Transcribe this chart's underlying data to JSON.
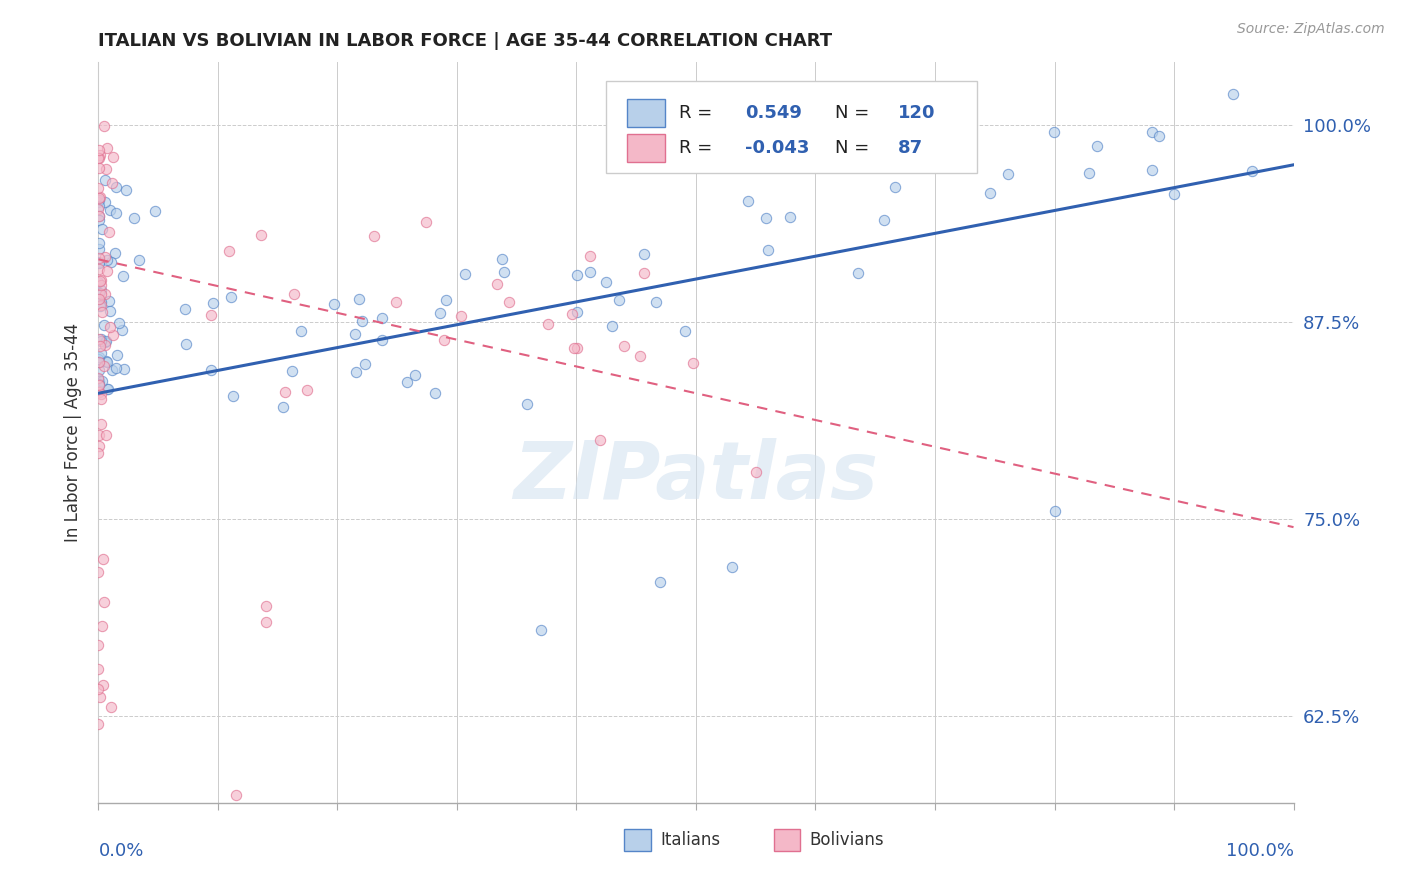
{
  "title": "ITALIAN VS BOLIVIAN IN LABOR FORCE | AGE 35-44 CORRELATION CHART",
  "source": "Source: ZipAtlas.com",
  "ylabel": "In Labor Force | Age 35-44",
  "ytick_labels": [
    "62.5%",
    "75.0%",
    "87.5%",
    "100.0%"
  ],
  "ytick_values": [
    0.625,
    0.75,
    0.875,
    1.0
  ],
  "xlim": [
    0.0,
    1.0
  ],
  "ylim": [
    0.57,
    1.04
  ],
  "legend_italian_R": "0.549",
  "legend_italian_N": "120",
  "legend_bolivian_R": "-0.043",
  "legend_bolivian_N": "87",
  "italian_fill": "#b8d0ea",
  "bolivian_fill": "#f4b8c8",
  "italian_edge": "#5585c8",
  "bolivian_edge": "#e07090",
  "italian_line_color": "#3060b0",
  "bolivian_line_color": "#e06080",
  "watermark": "ZIPatlas",
  "background_color": "#ffffff",
  "scatter_size": 55,
  "scatter_alpha": 0.65,
  "italian_trend_x0": 0.0,
  "italian_trend_y0": 0.83,
  "italian_trend_x1": 1.0,
  "italian_trend_y1": 0.975,
  "bolivian_trend_x0": 0.0,
  "bolivian_trend_y0": 0.915,
  "bolivian_trend_x1": 1.0,
  "bolivian_trend_y1": 0.745
}
